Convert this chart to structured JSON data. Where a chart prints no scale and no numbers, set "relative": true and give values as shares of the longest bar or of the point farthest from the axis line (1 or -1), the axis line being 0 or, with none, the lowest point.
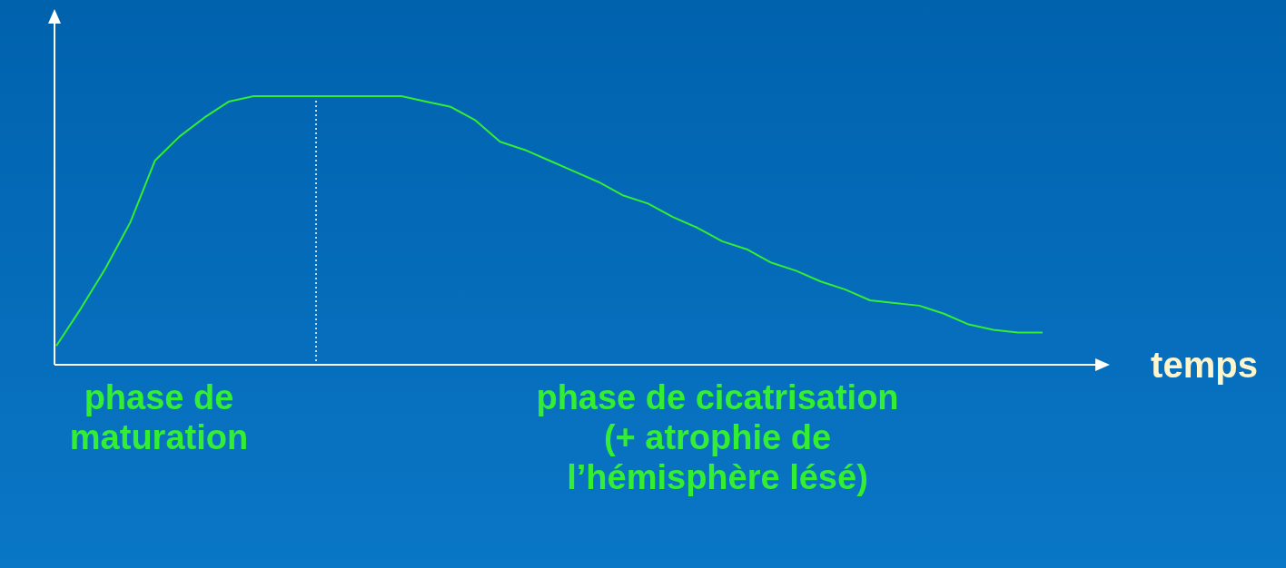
{
  "chart_data": {
    "type": "line",
    "relative": true,
    "xlabel": "temps",
    "categories": [
      null,
      null,
      null,
      null,
      null,
      null,
      null,
      null,
      null,
      null,
      null,
      null,
      null,
      null,
      null,
      null,
      null,
      null,
      null,
      null,
      null,
      null,
      null,
      null,
      null,
      null,
      null,
      null,
      null,
      null,
      null,
      null,
      null,
      null,
      null,
      null,
      null,
      null,
      null,
      null,
      null
    ],
    "series": [
      {
        "color": "#33ee33",
        "values": [
          0.07,
          0.21,
          0.36,
          0.53,
          0.76,
          0.85,
          0.92,
          0.98,
          1,
          1,
          1,
          1,
          1,
          1,
          1,
          0.98,
          0.96,
          0.91,
          0.83,
          0.8,
          0.76,
          0.72,
          0.68,
          0.63,
          0.6,
          0.55,
          0.51,
          0.46,
          0.43,
          0.38,
          0.35,
          0.31,
          0.28,
          0.24,
          0.23,
          0.22,
          0.19,
          0.15,
          0.13,
          0.12,
          0.12
        ]
      }
    ],
    "annotations": [
      "phase de maturation",
      "phase de cicatrisation (+ atrophie de l’hémisphère lésé)"
    ]
  }
}
